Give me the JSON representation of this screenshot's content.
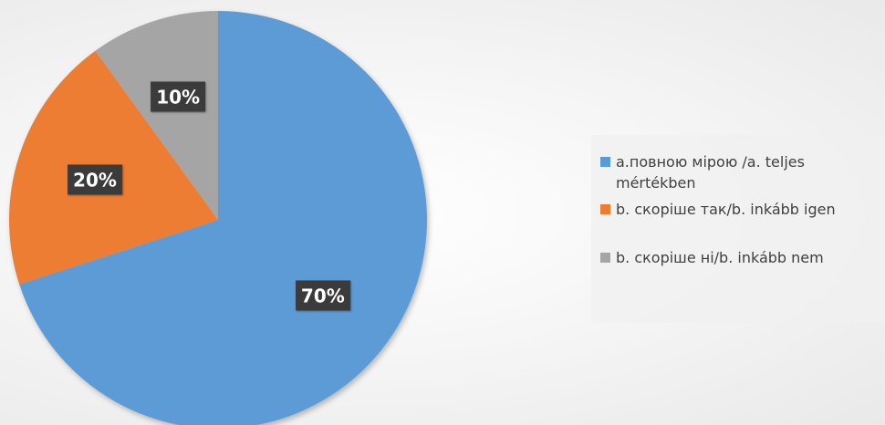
{
  "chart_data": {
    "type": "pie",
    "title": "",
    "start_angle_deg": 0,
    "direction": "clockwise",
    "slices": [
      {
        "label": "a.повною мірою /a. teljes mértékben",
        "value": 70,
        "display": "70%",
        "color": "#5b9bd5"
      },
      {
        "label": "b. скоріше так/b. inkább igen",
        "value": 20,
        "display": "20%",
        "color": "#ed7d31"
      },
      {
        "label": "b. скоріше ні/b. inkább nem",
        "value": 10,
        "display": "10%",
        "color": "#a5a5a5"
      }
    ],
    "legend": {
      "position": "right"
    },
    "data_labels": {
      "background": "#3b3b3b",
      "text_color": "#ffffff"
    }
  }
}
